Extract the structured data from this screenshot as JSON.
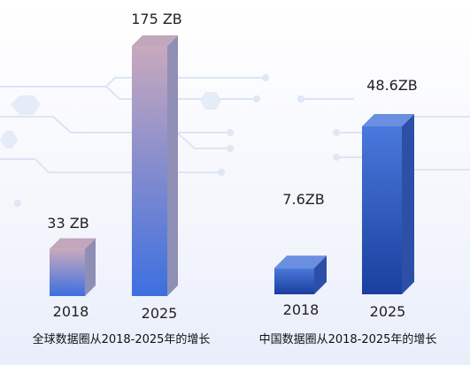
{
  "chart_data": [
    {
      "type": "bar",
      "title": "全球数据圈从2018-2025年的增长",
      "categories": [
        "2018",
        "2025"
      ],
      "values": [
        33,
        175
      ],
      "value_labels": [
        "33 ZB",
        "175 ZB"
      ],
      "unit": "ZB",
      "ylim": [
        0,
        180
      ],
      "colors": {
        "light": "#c9a9bd",
        "dark": "#3d6fe0",
        "top": "#c2a6bb",
        "side": "#8f8fb5"
      }
    },
    {
      "type": "bar",
      "title": "中国数据圈从2018-2025年的增长",
      "categories": [
        "2018",
        "2025"
      ],
      "values": [
        7.6,
        48.6
      ],
      "value_labels": [
        "7.6ZB",
        "48.6ZB"
      ],
      "unit": "ZB",
      "ylim": [
        0,
        50
      ],
      "colors": {
        "light": "#4a78dc",
        "dark": "#1a3f9e",
        "top": "#6a8fe0",
        "side": "#2e4fa8"
      }
    }
  ]
}
